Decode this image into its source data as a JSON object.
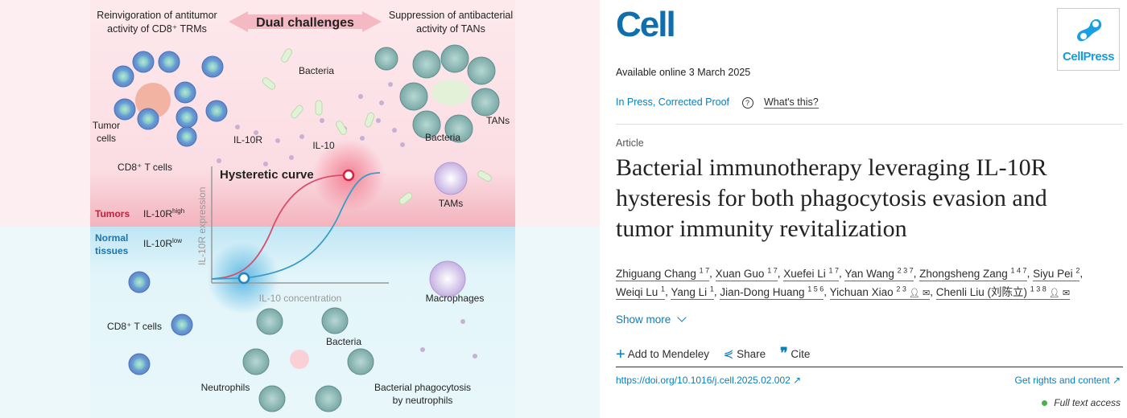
{
  "figure": {
    "top_left_caption": [
      "Reinvigoration of antitumor",
      "activity of CD8⁺ TRMs"
    ],
    "banner": "Dual challenges",
    "top_right_caption": [
      "Suppression of antibacterial",
      "activity of TANs"
    ],
    "labels": {
      "bacteria_top": "Bacteria",
      "tumor_cells": [
        "Tumor",
        "cells"
      ],
      "il10r": "IL-10R",
      "il10": "IL-10",
      "cd8_top": "CD8⁺ T cells",
      "bacteria_tans": "Bacteria",
      "tans": "TANs",
      "tams": "TAMs",
      "curve_title": "Hysteretic curve",
      "yaxis": "IL-10R expression",
      "xaxis": "IL-10 concentration",
      "tumors": "Tumors",
      "il10r_high": "IL-10R",
      "high": "high",
      "normal": [
        "Normal",
        "tissues"
      ],
      "il10r_low": "IL-10R",
      "low": "low",
      "macrophages": "Macrophages",
      "cd8_bottom": "CD8⁺ T cells",
      "bacteria_bottom": "Bacteria",
      "neutrophils": "Neutrophils",
      "phago": [
        "Bacterial phagocytosis",
        "by neutrophils"
      ]
    },
    "colors": {
      "tumor_bg": "#fde8ec",
      "normal_bg": "#e6f6fa",
      "tumor_curve": "#d6506b",
      "normal_curve": "#3a9cc7"
    }
  },
  "journal": {
    "name": "Cell",
    "publisher": "CellPress",
    "brand_color": "#0f7ec0"
  },
  "article": {
    "available": "Available online 3 March 2025",
    "status": "In Press, Corrected Proof",
    "help_icon": "question-circle-icon",
    "whats_this": "What's this?",
    "type": "Article",
    "title": [
      "Bacterial immunotherapy leveraging IL-10R",
      "hysteresis for both phagocytosis evasion and",
      "tumor immunity revitalization"
    ],
    "authors_line1": [
      {
        "name": "Zhiguang Chang",
        "sup": "1 7"
      },
      {
        "name": "Xuan Guo",
        "sup": "1 7"
      },
      {
        "name": "Xuefei Li",
        "sup": "1 7"
      },
      {
        "name": "Yan Wang",
        "sup": "2 3 7"
      },
      {
        "name": "Zhongsheng Zang",
        "sup": "1 4 7"
      },
      {
        "name": "Siyu Pei",
        "sup": "2"
      }
    ],
    "authors_line2": [
      {
        "name": "Weiqi Lu",
        "sup": "1"
      },
      {
        "name": "Yang Li",
        "sup": "1"
      },
      {
        "name": "Jian-Dong Huang",
        "sup": "1 5 6"
      },
      {
        "name": "Yichuan Xiao",
        "sup": "2 3"
      },
      {
        "name": "Chenli Liu (刘陈立)",
        "sup": "1 3 8"
      }
    ],
    "show_more": "Show more",
    "actions": {
      "mendeley": "Add to Mendeley",
      "share": "Share",
      "cite": "Cite"
    },
    "doi": "https://doi.org/10.1016/j.cell.2025.02.002",
    "rights": "Get rights and content",
    "access": "Full text access",
    "access_color": "#4caf50"
  }
}
